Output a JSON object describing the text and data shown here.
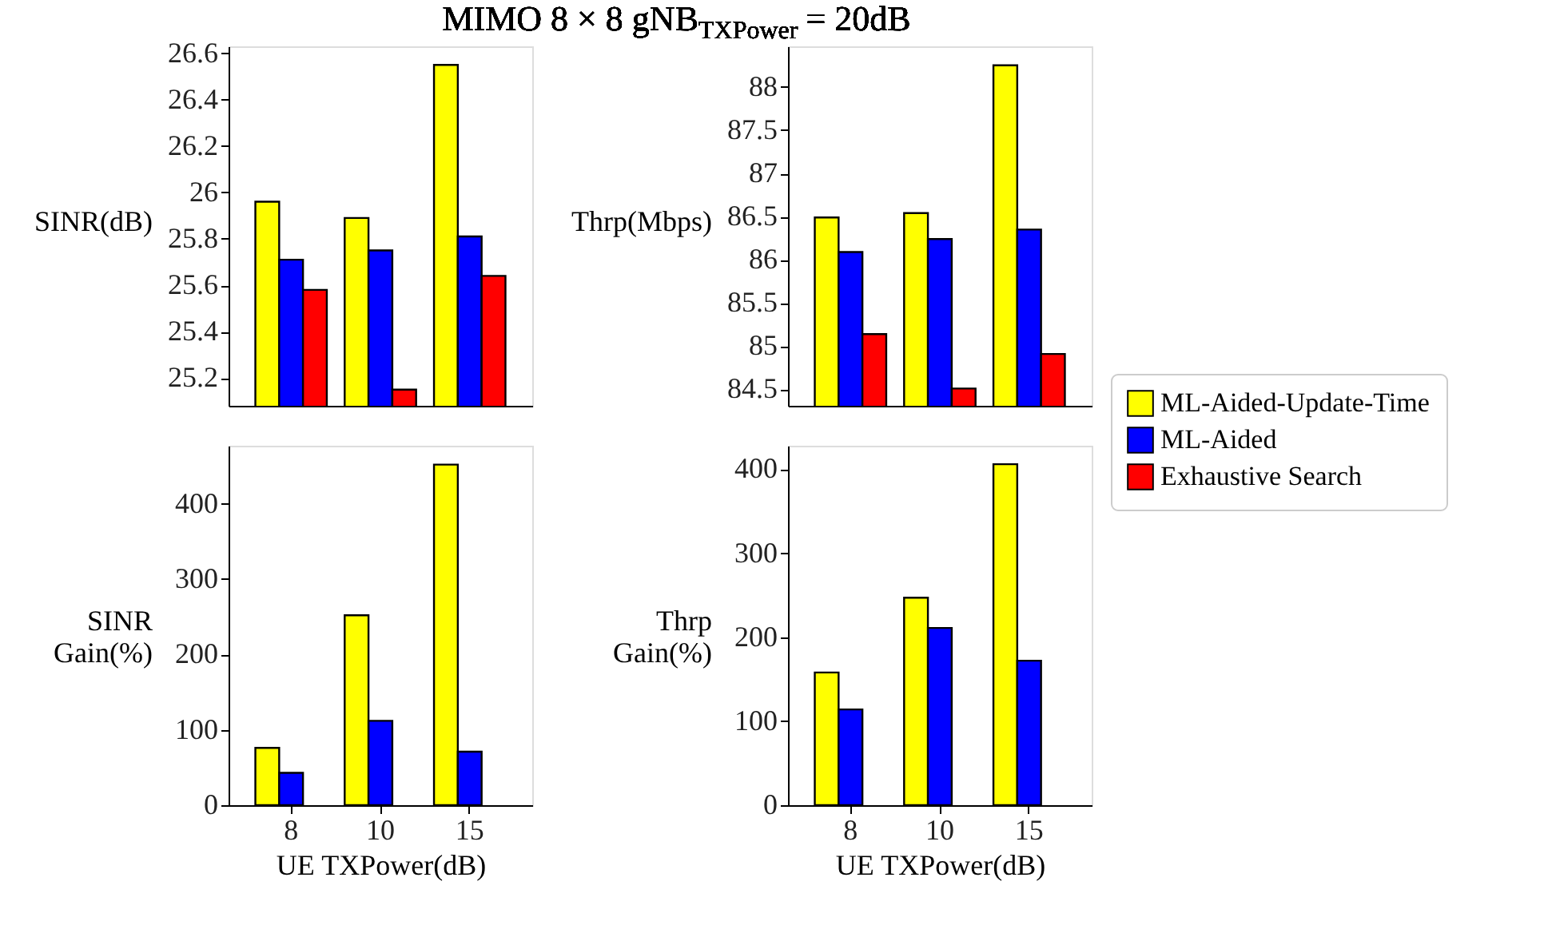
{
  "chart_data": [
    {
      "type": "bar",
      "title": "MIMO 8 × 8 gNB$_{TXPower}$ = 20dB",
      "categories": [
        "8",
        "10",
        "15"
      ],
      "ylabel": "SINR(dB)",
      "ylim": [
        25.08,
        26.63
      ],
      "yticks": [
        25.2,
        25.4,
        25.6,
        25.8,
        26,
        26.2,
        26.4,
        26.6
      ],
      "tick_labels": "y",
      "legend": "right",
      "grid": false,
      "series": [
        {
          "name": "ML-Aided-Update-Time",
          "color": "#ffff00",
          "values": [
            25.96,
            25.89,
            26.55
          ]
        },
        {
          "name": "ML-Aided",
          "color": "#0000ff",
          "values": [
            25.71,
            25.75,
            25.81
          ]
        },
        {
          "name": "Exhaustive Search",
          "color": "#ff0000",
          "values": [
            25.58,
            25.15,
            25.64
          ]
        }
      ]
    },
    {
      "type": "bar",
      "categories": [
        "8",
        "10",
        "15"
      ],
      "ylabel": "Thrp(Mbps)",
      "ylim": [
        84.31,
        88.47
      ],
      "yticks": [
        84.5,
        85,
        85.5,
        86,
        86.5,
        87,
        87.5,
        88
      ],
      "tick_labels": "y",
      "legend": "right",
      "grid": false,
      "series": [
        {
          "name": "ML-Aided-Update-Time",
          "color": "#ffff00",
          "values": [
            86.49,
            86.54,
            88.25
          ]
        },
        {
          "name": "ML-Aided",
          "color": "#0000ff",
          "values": [
            86.09,
            86.24,
            86.35
          ]
        },
        {
          "name": "Exhaustive Search",
          "color": "#ff0000",
          "values": [
            85.14,
            84.51,
            84.91
          ]
        }
      ]
    },
    {
      "type": "bar",
      "categories": [
        "8",
        "10",
        "15"
      ],
      "xlabel": "UE TXPower(dB)",
      "ylabel": "SINR\nGain(%)",
      "ylim": [
        0,
        477
      ],
      "yticks": [
        0,
        100,
        200,
        300,
        400
      ],
      "legend": "right",
      "grid": false,
      "series": [
        {
          "name": "ML-Aided-Update-Time",
          "color": "#ffff00",
          "values": [
            76,
            252,
            452
          ]
        },
        {
          "name": "ML-Aided",
          "color": "#0000ff",
          "values": [
            43,
            112,
            71
          ]
        }
      ]
    },
    {
      "type": "bar",
      "categories": [
        "8",
        "10",
        "15"
      ],
      "xlabel": "UE TXPower(dB)",
      "ylabel": "Thrp\nGain(%)",
      "ylim": [
        0,
        428
      ],
      "yticks": [
        0,
        100,
        200,
        300,
        400
      ],
      "legend": "right",
      "grid": false,
      "series": [
        {
          "name": "ML-Aided-Update-Time",
          "color": "#ffff00",
          "values": [
            158,
            247,
            406
          ]
        },
        {
          "name": "ML-Aided",
          "color": "#0000ff",
          "values": [
            114,
            211,
            172
          ]
        }
      ]
    }
  ]
}
